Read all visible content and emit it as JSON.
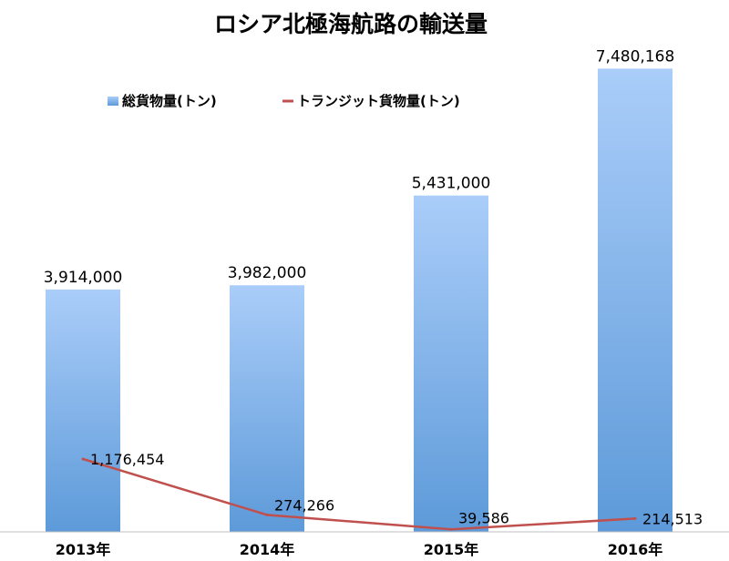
{
  "chart_data": {
    "type": "bar",
    "title": "ロシア北極海航路の輸送量",
    "categories": [
      "2013年",
      "2014年",
      "2015年",
      "2016年"
    ],
    "series": [
      {
        "name": "総貨物量(トン)",
        "type": "bar",
        "color": "#7fb0e8",
        "values": [
          3914000,
          3982000,
          5431000,
          7480168
        ],
        "labels": [
          "3,914,000",
          "3,982,000",
          "5,431,000",
          "7,480,168"
        ]
      },
      {
        "name": "トランジット貨物量(トン)",
        "type": "line",
        "color": "#c0504d",
        "values": [
          1176454,
          274266,
          39586,
          214513
        ],
        "labels": [
          "1,176,454",
          "274,266",
          "39,586",
          "214,513"
        ]
      }
    ],
    "xlabel": "",
    "ylabel": "",
    "ylim": [
      0,
      8000000
    ],
    "grid": false,
    "legend_position": "top-left"
  }
}
